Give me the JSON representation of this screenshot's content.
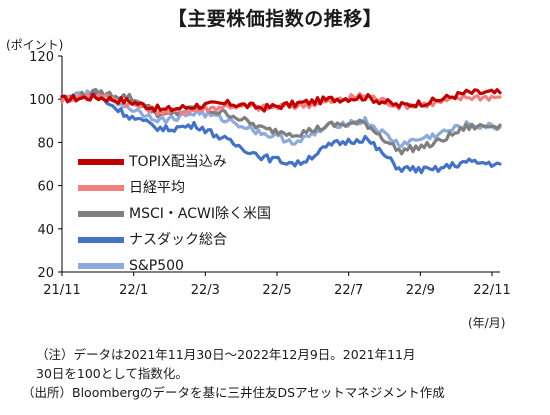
{
  "header": {
    "title": "【主要株価指数の推移】",
    "y_unit": "(ポイント)",
    "x_unit": "(年/月)"
  },
  "notes": {
    "note": "（注）データは2021年11月30日～2022年12月9日。2021年11月30日を100として指数化。",
    "note_line1": "（注）データは2021年11月30日～2022年12月9日。2021年11月",
    "note_line2": "30日を100として指数化。",
    "source": "（出所）Bloombergのデータを基に三井住友DSアセットマネジメント作成"
  },
  "chart_data": {
    "type": "line",
    "title": "【主要株価指数の推移】",
    "ylabel": "(ポイント)",
    "xlabel": "(年/月)",
    "ylim": [
      20,
      120
    ],
    "yticks": [
      20,
      40,
      60,
      80,
      100,
      120
    ],
    "xtick_labels": [
      "21/11",
      "22/1",
      "22/3",
      "22/5",
      "22/7",
      "22/9",
      "22/11"
    ],
    "grid": false,
    "legend_position": "left-center",
    "x": [
      "21/11",
      "21/12",
      "22/1",
      "22/2",
      "22/3",
      "22/4",
      "22/5",
      "22/6",
      "22/7",
      "22/8",
      "22/9",
      "22/10",
      "22/11",
      "22/12"
    ],
    "series": [
      {
        "name": "TOPIX配当込み",
        "color": "#c00000",
        "width": 3.2,
        "values": [
          100,
          101,
          99,
          95,
          97,
          98,
          96,
          98,
          100,
          101,
          97,
          99,
          103,
          103
        ]
      },
      {
        "name": "日経平均",
        "color": "#f08080",
        "width": 3.2,
        "values": [
          100,
          102,
          98,
          94,
          95,
          97,
          96,
          97,
          99,
          102,
          97,
          98,
          101,
          101
        ]
      },
      {
        "name": "MSCI・ACWI除く米国",
        "color": "#7f7f7f",
        "width": 3.2,
        "values": [
          100,
          103,
          101,
          92,
          96,
          93,
          86,
          84,
          88,
          89,
          76,
          79,
          87,
          88
        ]
      },
      {
        "name": "ナスダック総合",
        "color": "#4472c4",
        "width": 3.2,
        "values": [
          100,
          102,
          92,
          86,
          88,
          80,
          73,
          70,
          79,
          82,
          68,
          67,
          71,
          70
        ]
      },
      {
        "name": "S&P500",
        "color": "#8ea9db",
        "width": 3.2,
        "values": [
          100,
          103,
          96,
          90,
          94,
          90,
          84,
          80,
          88,
          90,
          79,
          83,
          88,
          87
        ]
      }
    ]
  }
}
